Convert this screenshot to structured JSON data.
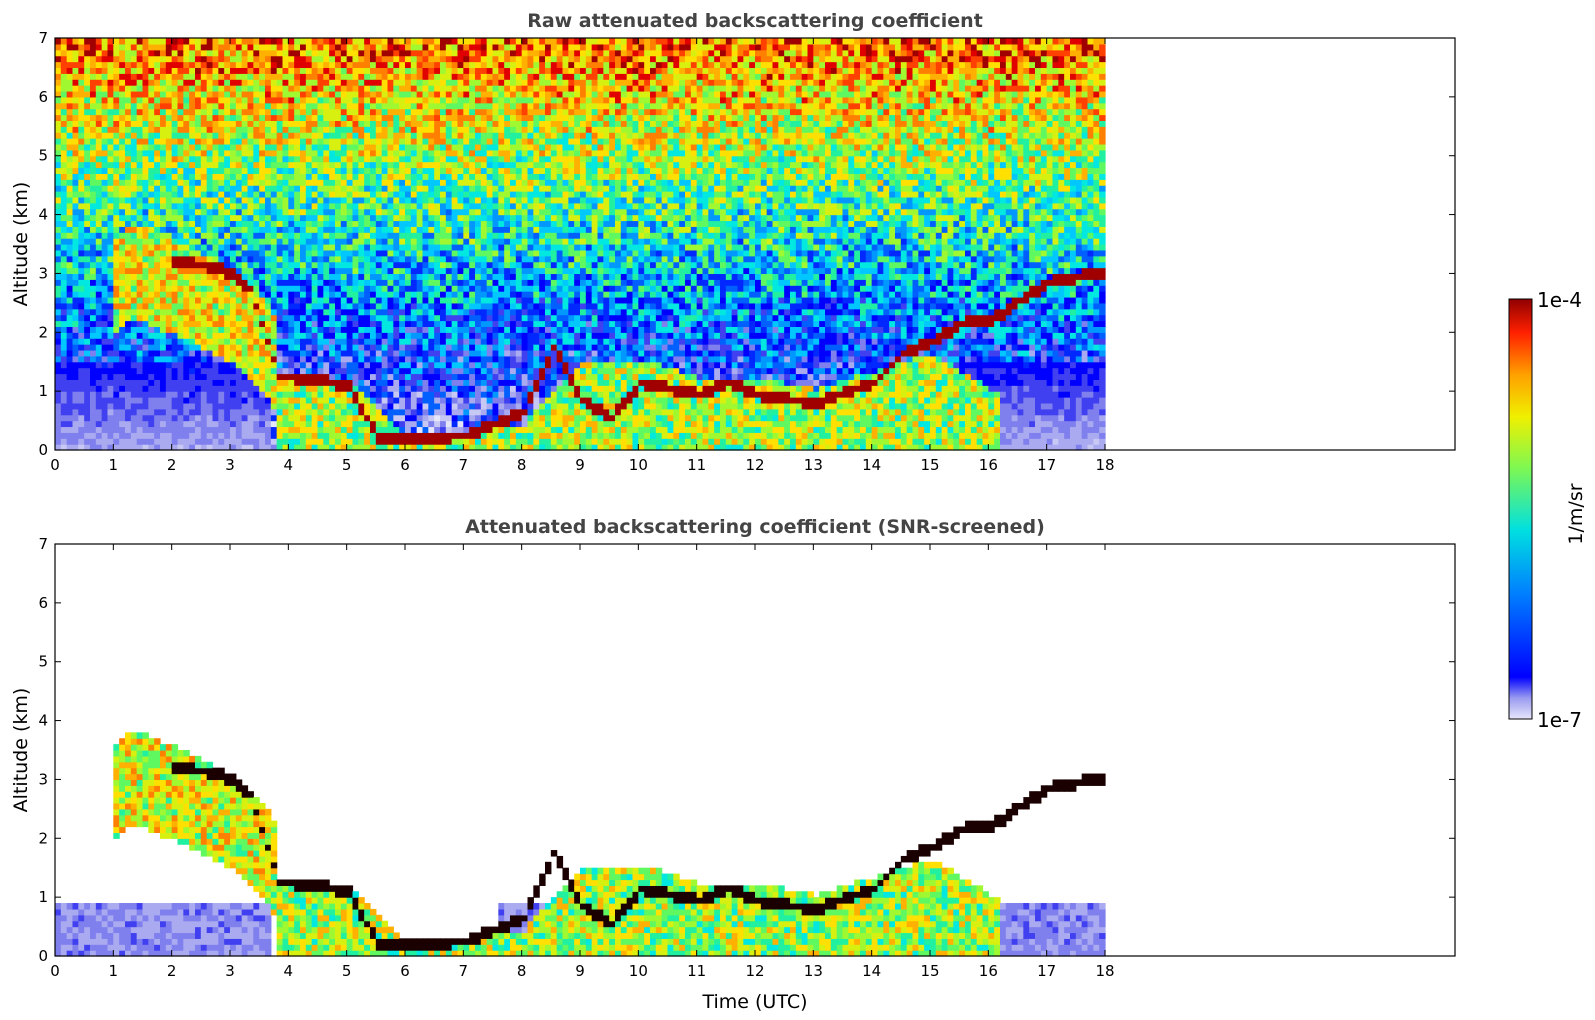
{
  "chart_data": [
    {
      "type": "heatmap",
      "title": "Raw attenuated backscattering coefficient",
      "xlabel": "",
      "ylabel": "Altitude (km)",
      "xlim": [
        0,
        24
      ],
      "ylim": [
        0,
        7
      ],
      "x_ticks": [
        "0",
        "1",
        "2",
        "3",
        "4",
        "5",
        "6",
        "7",
        "8",
        "9",
        "10",
        "11",
        "12",
        "13",
        "14",
        "15",
        "16",
        "17",
        "18"
      ],
      "y_ticks": [
        "0",
        "1",
        "2",
        "3",
        "4",
        "5",
        "6",
        "7"
      ],
      "data_extent_x": [
        0,
        18
      ],
      "layers": [
        {
          "name": "boundary-layer",
          "x": [
            0,
            1,
            2,
            3,
            3.7,
            3.8,
            5,
            6,
            7,
            8,
            9,
            10,
            11,
            12,
            13,
            14,
            15,
            16,
            17,
            18
          ],
          "top": [
            0.5,
            0.5,
            0.45,
            0.45,
            0.4,
            1.2,
            1.2,
            0.15,
            0.25,
            0.4,
            1.5,
            1.5,
            1.2,
            1.2,
            1.0,
            1.3,
            1.6,
            1.0,
            0.7,
            0.6
          ]
        },
        {
          "name": "cloud-top-layer",
          "x": [
            2,
            2.5,
            3,
            3.3,
            3.8,
            4,
            4.5,
            5,
            5.5,
            6,
            7,
            7.5,
            8,
            8.5,
            9,
            9.5,
            10,
            11,
            11.5,
            12,
            13,
            14,
            14.5,
            15,
            15.5,
            16,
            16.5,
            17,
            18
          ],
          "alt": [
            3.15,
            3.1,
            2.95,
            2.7,
            1.2,
            1.2,
            1.15,
            1.05,
            0.15,
            0.15,
            0.2,
            0.4,
            0.6,
            1.7,
            0.8,
            0.5,
            1.1,
            0.9,
            1.1,
            0.9,
            0.75,
            1.1,
            1.6,
            1.8,
            2.1,
            2.15,
            2.5,
            2.8,
            3.0
          ]
        },
        {
          "name": "mid-level-aerosol",
          "x": [
            1,
            1.3,
            2,
            2.5,
            3,
            3.5,
            3.8
          ],
          "alt": [
            3.3,
            3.5,
            3.2,
            3.0,
            2.7,
            2.3,
            1.8
          ]
        }
      ]
    },
    {
      "type": "heatmap",
      "title": "Attenuated backscattering coefficient (SNR-screened)",
      "xlabel": "Time (UTC)",
      "ylabel": "Altitude (km)",
      "xlim": [
        0,
        24
      ],
      "ylim": [
        0,
        7
      ],
      "x_ticks": [
        "0",
        "1",
        "2",
        "3",
        "4",
        "5",
        "6",
        "7",
        "8",
        "9",
        "10",
        "11",
        "12",
        "13",
        "14",
        "15",
        "16",
        "17",
        "18"
      ],
      "y_ticks": [
        "0",
        "1",
        "2",
        "3",
        "4",
        "5",
        "6",
        "7"
      ],
      "data_extent_x": [
        0,
        18
      ]
    }
  ],
  "colorbar": {
    "label": "1/m/sr",
    "max_label": "1e-4",
    "min_label": "1e-7",
    "scale": "log",
    "colors": [
      "#e6e6fa",
      "#c8c8f5",
      "#aaaaf0",
      "#7f7fee",
      "#4040f0",
      "#0000ff",
      "#0028ff",
      "#0060ff",
      "#0098ff",
      "#00c8ff",
      "#00e8e0",
      "#20f0a0",
      "#60f860",
      "#a0f830",
      "#d8f010",
      "#ffe000",
      "#ffb000",
      "#ff8000",
      "#ff4000",
      "#e00000",
      "#a00000"
    ]
  }
}
